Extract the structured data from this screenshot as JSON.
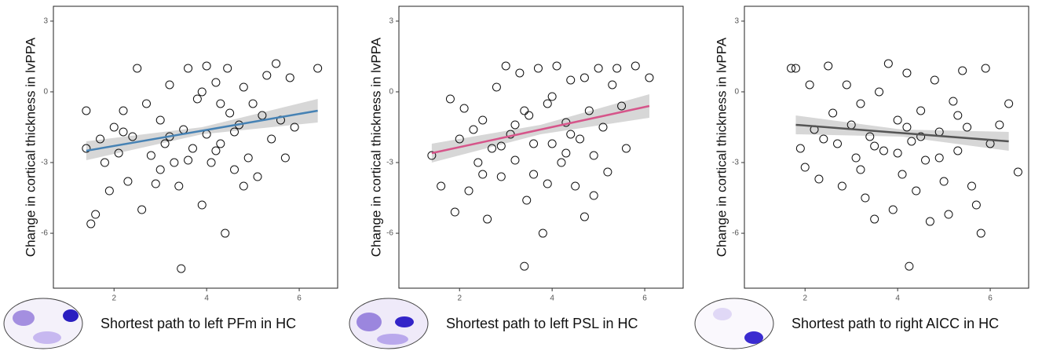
{
  "chart_data": [
    {
      "type": "scatter",
      "ylabel": "Change in cortical thickness in lvPPA",
      "xlabel": "Shortest path to left PFm in HC",
      "xlim": [
        0.69,
        6.83
      ],
      "ylim": [
        -8.33,
        3.63
      ],
      "xticks": [
        2,
        4,
        6
      ],
      "yticks": [
        3,
        0,
        -3,
        -6
      ],
      "color": "#4682b4",
      "x": [
        1.4,
        1.4,
        1.5,
        1.6,
        1.7,
        1.8,
        1.9,
        2.0,
        2.1,
        2.2,
        2.3,
        2.4,
        2.5,
        2.6,
        2.7,
        2.8,
        2.9,
        3.0,
        3.1,
        3.2,
        3.3,
        3.4,
        3.45,
        3.5,
        3.6,
        3.7,
        3.8,
        3.9,
        4.0,
        4.0,
        4.1,
        4.2,
        4.3,
        4.4,
        4.45,
        4.5,
        4.6,
        4.7,
        4.8,
        4.9,
        5.0,
        5.1,
        5.2,
        5.3,
        5.4,
        5.5,
        5.6,
        5.8,
        5.9,
        6.4,
        3.2,
        3.6,
        4.2,
        4.6,
        3.9,
        2.2,
        4.8,
        5.7,
        3.0,
        4.3
      ],
      "y": [
        -0.8,
        -2.4,
        -5.6,
        -5.2,
        -2.0,
        -3.0,
        -4.2,
        -1.5,
        -2.6,
        -0.8,
        -3.8,
        -1.9,
        1.0,
        -5.0,
        -0.5,
        -2.7,
        -3.9,
        -1.2,
        -2.2,
        0.3,
        -3.0,
        -4.0,
        -7.5,
        -1.6,
        1.0,
        -2.4,
        -0.3,
        -4.8,
        1.1,
        -1.8,
        -3.0,
        0.4,
        -2.2,
        -6.0,
        1.0,
        -0.9,
        -3.3,
        -1.4,
        0.2,
        -2.8,
        -0.5,
        -3.6,
        -1.0,
        0.7,
        -2.0,
        1.2,
        -1.2,
        0.6,
        -1.5,
        1.0,
        -1.9,
        -2.9,
        -2.5,
        -1.7,
        0.0,
        -1.7,
        -4.0,
        -2.8,
        -3.3,
        -0.5
      ],
      "fit": {
        "x": [
          1.4,
          6.4
        ],
        "y": [
          -2.5,
          -0.8
        ]
      },
      "band": {
        "x": [
          1.4,
          3.9,
          6.4
        ],
        "lower": [
          -2.9,
          -1.8,
          -1.3
        ],
        "upper": [
          -2.1,
          -1.5,
          -0.3
        ]
      }
    },
    {
      "type": "scatter",
      "ylabel": "Change in cortical thickness in lvPPA",
      "xlabel": "Shortest path to left PSL in HC",
      "xlim": [
        0.69,
        6.83
      ],
      "ylim": [
        -8.33,
        3.63
      ],
      "xticks": [
        2,
        4,
        6
      ],
      "yticks": [
        3,
        0,
        -3,
        -6
      ],
      "color": "#d6558a",
      "x": [
        1.4,
        1.6,
        1.8,
        1.9,
        2.0,
        2.1,
        2.2,
        2.3,
        2.4,
        2.5,
        2.6,
        2.7,
        2.8,
        2.9,
        3.0,
        3.1,
        3.2,
        3.3,
        3.4,
        3.45,
        3.5,
        3.6,
        3.7,
        3.8,
        3.9,
        4.0,
        4.1,
        4.2,
        4.3,
        4.4,
        4.5,
        4.6,
        4.7,
        4.8,
        4.9,
        5.0,
        5.1,
        5.2,
        5.3,
        5.5,
        5.6,
        5.8,
        6.1,
        3.2,
        3.6,
        4.0,
        4.4,
        2.9,
        4.7,
        3.9,
        2.5,
        4.3,
        3.4,
        4.9,
        5.4
      ],
      "y": [
        -2.7,
        -4.0,
        -0.3,
        -5.1,
        -2.0,
        -0.7,
        -4.2,
        -1.6,
        -3.0,
        -1.2,
        -5.4,
        -2.4,
        0.2,
        -3.6,
        1.1,
        -1.8,
        -2.9,
        0.8,
        -7.4,
        -4.6,
        -1.0,
        -3.5,
        1.0,
        -6.0,
        -0.5,
        -2.2,
        1.1,
        -3.0,
        -1.3,
        0.5,
        -4.0,
        -2.0,
        -5.3,
        -0.8,
        -2.7,
        1.0,
        -1.5,
        -3.4,
        0.3,
        -0.6,
        -2.4,
        1.1,
        0.6,
        -1.4,
        -2.2,
        -0.2,
        -1.8,
        -2.3,
        0.6,
        -3.9,
        -3.5,
        -2.6,
        -0.8,
        -4.4,
        1.0
      ],
      "fit": {
        "x": [
          1.4,
          6.1
        ],
        "y": [
          -2.6,
          -0.6
        ]
      },
      "band": {
        "x": [
          1.4,
          3.75,
          6.1
        ],
        "lower": [
          -3.0,
          -1.8,
          -1.1
        ],
        "upper": [
          -2.2,
          -1.4,
          -0.1
        ]
      }
    },
    {
      "type": "scatter",
      "ylabel": "Change in cortical thickness in lvPPA",
      "xlabel": "Shortest path to right AICC in HC",
      "xlim": [
        0.69,
        6.83
      ],
      "ylim": [
        -8.33,
        3.63
      ],
      "xticks": [
        2,
        4,
        6
      ],
      "yticks": [
        3,
        0,
        -3,
        -6
      ],
      "color": "#555555",
      "x": [
        1.7,
        1.8,
        1.9,
        2.0,
        2.1,
        2.2,
        2.3,
        2.5,
        2.6,
        2.7,
        2.8,
        2.9,
        3.0,
        3.1,
        3.2,
        3.3,
        3.4,
        3.5,
        3.6,
        3.7,
        3.8,
        3.9,
        4.0,
        4.1,
        4.2,
        4.25,
        4.3,
        4.4,
        4.5,
        4.6,
        4.7,
        4.8,
        4.9,
        5.0,
        5.1,
        5.2,
        5.3,
        5.4,
        5.5,
        5.6,
        5.7,
        5.8,
        5.9,
        6.0,
        6.2,
        6.4,
        6.6,
        3.5,
        4.0,
        4.5,
        4.9,
        3.2,
        2.4,
        5.3,
        4.2
      ],
      "y": [
        1.0,
        1.0,
        -2.4,
        -3.2,
        0.3,
        -1.6,
        -3.7,
        1.1,
        -0.9,
        -2.2,
        -4.0,
        0.3,
        -1.4,
        -2.8,
        -0.5,
        -4.5,
        -1.9,
        -5.4,
        0.0,
        -2.5,
        1.2,
        -5.0,
        -1.2,
        -3.5,
        0.8,
        -7.4,
        -2.1,
        -4.2,
        -0.8,
        -2.9,
        -5.5,
        0.5,
        -1.7,
        -3.8,
        -5.2,
        -0.4,
        -2.5,
        0.9,
        -1.5,
        -4.0,
        -4.8,
        -6.0,
        1.0,
        -2.2,
        -1.4,
        -0.5,
        -3.4,
        -2.3,
        -2.6,
        -1.9,
        -2.8,
        -3.3,
        -2.0,
        -1.0,
        -1.5
      ],
      "fit": {
        "x": [
          1.8,
          6.4
        ],
        "y": [
          -1.4,
          -2.1
        ]
      },
      "band": {
        "x": [
          1.8,
          4.1,
          6.4
        ],
        "lower": [
          -1.8,
          -1.9,
          -2.5
        ],
        "upper": [
          -1.0,
          -1.6,
          -1.7
        ]
      }
    }
  ]
}
